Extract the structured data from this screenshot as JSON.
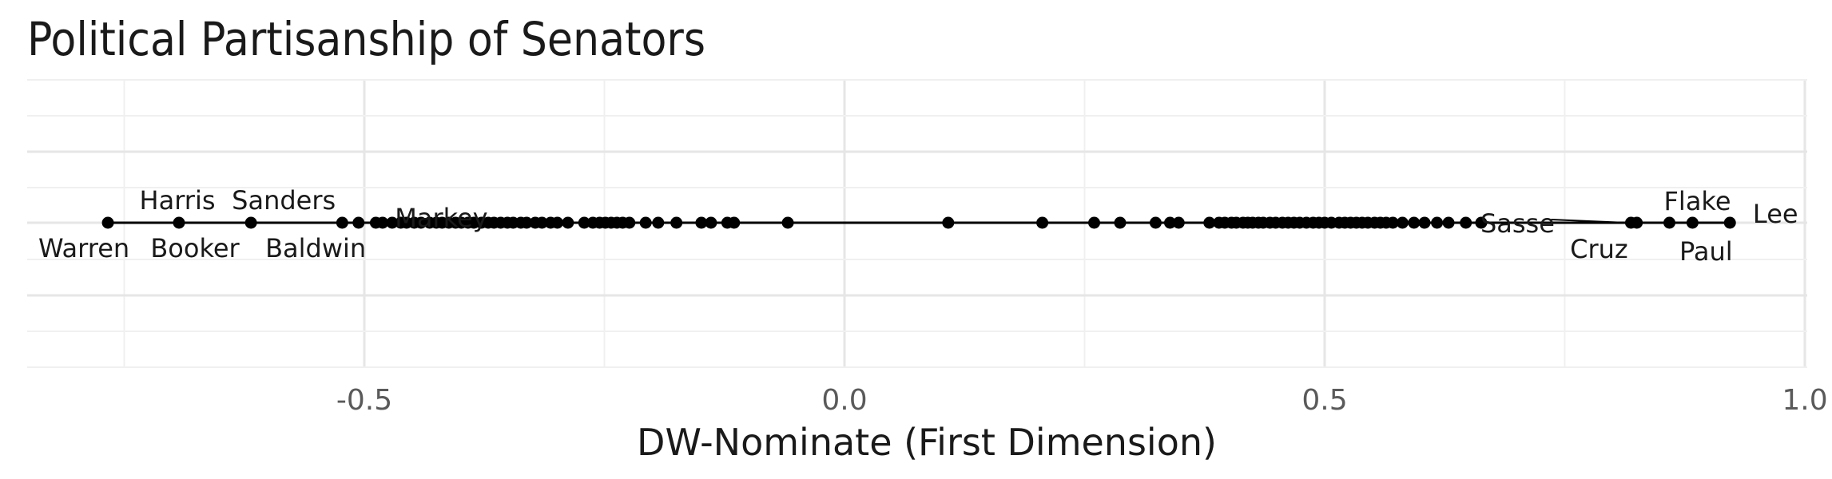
{
  "chart_data": {
    "type": "scatter",
    "title": "Political Partisanship of Senators",
    "xlabel": "DW-Nominate (First Dimension)",
    "ylabel": "",
    "xlim": [
      -0.85,
      1.0
    ],
    "xticks": [
      -0.5,
      0.0,
      0.5,
      1.0
    ],
    "xtick_labels": [
      "-0.5",
      "0.0",
      "0.5",
      "1.0"
    ],
    "grid": true,
    "legend": "none",
    "point_color": "#000000",
    "line_color": "#000000",
    "y": 0,
    "points": [
      -0.767,
      -0.693,
      -0.618,
      -0.523,
      -0.506,
      -0.488,
      -0.481,
      -0.471,
      -0.462,
      -0.456,
      -0.448,
      -0.441,
      -0.432,
      -0.425,
      -0.419,
      -0.412,
      -0.405,
      -0.399,
      -0.392,
      -0.386,
      -0.378,
      -0.371,
      -0.365,
      -0.358,
      -0.351,
      -0.345,
      -0.337,
      -0.331,
      -0.322,
      -0.315,
      -0.306,
      -0.299,
      -0.288,
      -0.271,
      -0.262,
      -0.255,
      -0.249,
      -0.243,
      -0.237,
      -0.231,
      -0.224,
      -0.207,
      -0.194,
      -0.175,
      -0.149,
      -0.139,
      -0.122,
      -0.115,
      -0.059,
      0.108,
      0.206,
      0.26,
      0.287,
      0.324,
      0.339,
      0.348,
      0.38,
      0.39,
      0.396,
      0.403,
      0.408,
      0.415,
      0.42,
      0.425,
      0.431,
      0.436,
      0.443,
      0.449,
      0.456,
      0.462,
      0.468,
      0.474,
      0.481,
      0.488,
      0.494,
      0.5,
      0.507,
      0.515,
      0.521,
      0.527,
      0.533,
      0.539,
      0.545,
      0.552,
      0.558,
      0.564,
      0.571,
      0.581,
      0.593,
      0.604,
      0.617,
      0.629,
      0.647,
      0.663,
      0.819,
      0.825,
      0.859,
      0.883,
      0.922
    ],
    "labels": [
      {
        "name": "Warren",
        "x": -0.767
      },
      {
        "name": "Harris",
        "x": -0.693
      },
      {
        "name": "Booker",
        "x": -0.693
      },
      {
        "name": "Sanders",
        "x": -0.618
      },
      {
        "name": "Baldwin",
        "x": -0.618
      },
      {
        "name": "Markey",
        "x": -0.488
      },
      {
        "name": "Sasse",
        "x": 0.819
      },
      {
        "name": "Cruz",
        "x": 0.819
      },
      {
        "name": "Flake",
        "x": 0.859
      },
      {
        "name": "Paul",
        "x": 0.883
      },
      {
        "name": "Lee",
        "x": 0.922
      }
    ]
  }
}
